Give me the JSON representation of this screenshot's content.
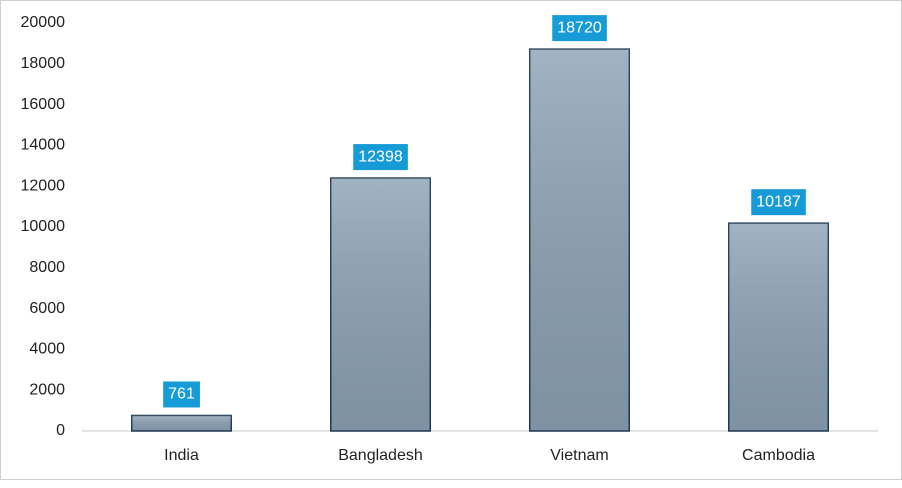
{
  "chart_data": {
    "type": "bar",
    "categories": [
      "India",
      "Bangladesh",
      "Vietnam",
      "Cambodia"
    ],
    "values": [
      761,
      12398,
      18720,
      10187
    ],
    "color": "#8da2b5",
    "label_color": "#179bd7",
    "ylim": [
      0,
      20000
    ],
    "yticks": [
      0,
      2000,
      4000,
      6000,
      8000,
      10000,
      12000,
      14000,
      16000,
      18000,
      20000
    ],
    "grid": false
  }
}
